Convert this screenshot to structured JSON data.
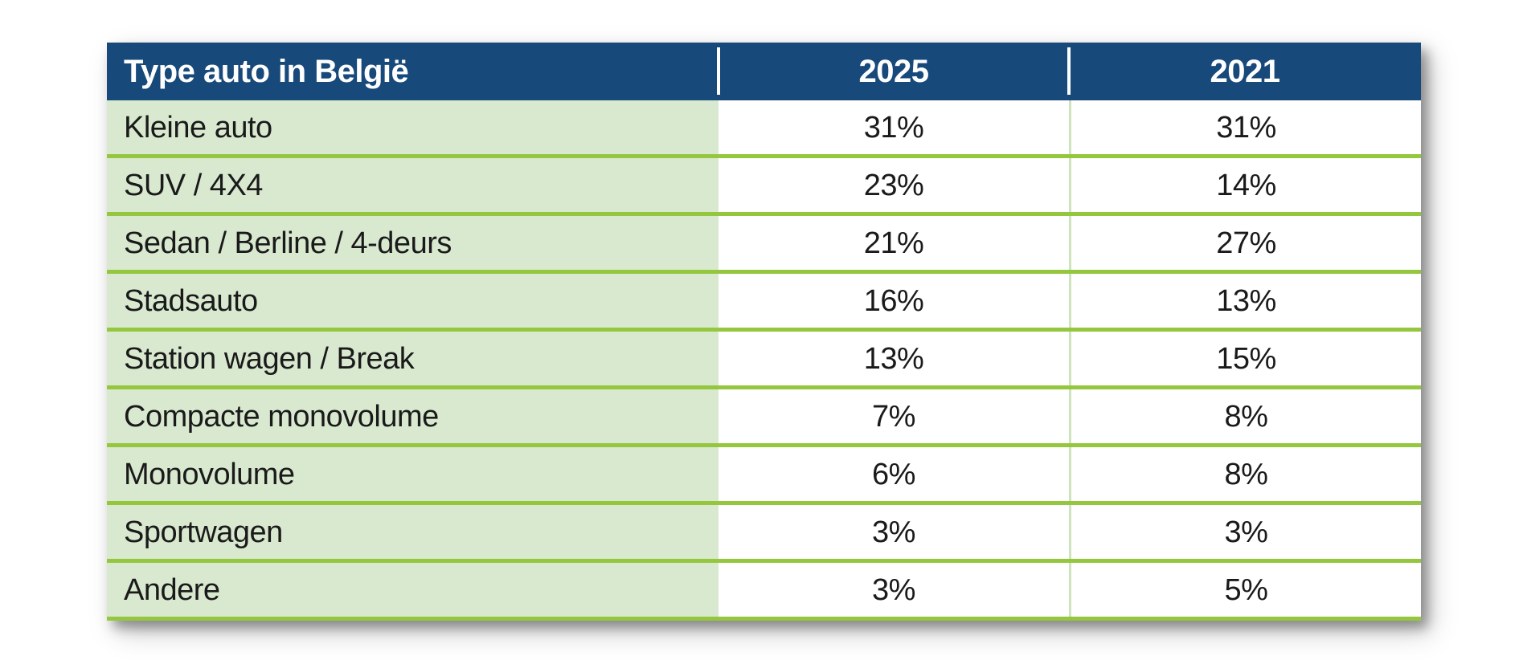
{
  "table": {
    "header": {
      "type_label": "Type auto in België",
      "col_2025": "2025",
      "col_2021": "2021"
    },
    "rows": [
      {
        "label": "Kleine auto",
        "v2025": "31%",
        "v2021": "31%"
      },
      {
        "label": "SUV / 4X4",
        "v2025": "23%",
        "v2021": "14%"
      },
      {
        "label": "Sedan / Berline / 4-deurs",
        "v2025": "21%",
        "v2021": "27%"
      },
      {
        "label": "Stadsauto",
        "v2025": "16%",
        "v2021": "13%"
      },
      {
        "label": "Station wagen / Break",
        "v2025": "13%",
        "v2021": "15%"
      },
      {
        "label": "Compacte monovolume",
        "v2025": "7%",
        "v2021": "8%"
      },
      {
        "label": "Monovolume",
        "v2025": "6%",
        "v2021": "8%"
      },
      {
        "label": "Sportwagen",
        "v2025": "3%",
        "v2021": "3%"
      },
      {
        "label": "Andere",
        "v2025": "3%",
        "v2021": "5%"
      }
    ]
  },
  "colors": {
    "header_bg": "#17497B",
    "header_text": "#FFFFFF",
    "label_cell_bg": "#D9E9D0",
    "value_cell_bg": "#FFFFFF",
    "row_divider_green": "#94C73E",
    "column_divider_light_green": "#CDE4BD",
    "header_divider_white": "#FFFFFF",
    "body_text": "#1A1A1A"
  },
  "chart_data": {
    "type": "table",
    "title": "Type auto in België",
    "columns": [
      "Type auto in België",
      "2025",
      "2021"
    ],
    "categories": [
      "Kleine auto",
      "SUV / 4X4",
      "Sedan / Berline / 4-deurs",
      "Stadsauto",
      "Station wagen / Break",
      "Compacte monovolume",
      "Monovolume",
      "Sportwagen",
      "Andere"
    ],
    "series": [
      {
        "name": "2025",
        "values": [
          31,
          23,
          21,
          16,
          13,
          7,
          6,
          3,
          3
        ]
      },
      {
        "name": "2021",
        "values": [
          31,
          14,
          27,
          13,
          15,
          8,
          8,
          3,
          5
        ]
      }
    ],
    "unit": "%"
  }
}
